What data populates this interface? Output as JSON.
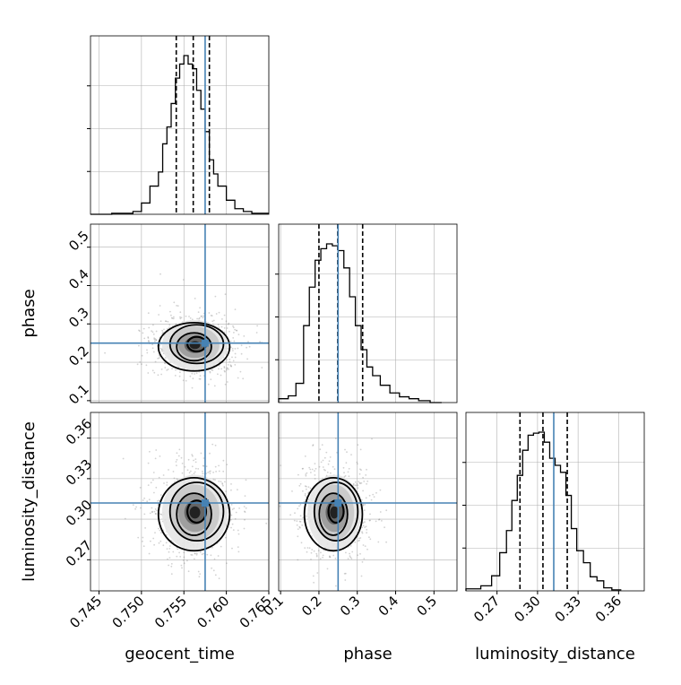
{
  "chart_data": {
    "type": "corner",
    "parameters": [
      "geocent_time",
      "phase",
      "luminosity_distance"
    ],
    "injection": {
      "geocent_time": 0.7575,
      "phase": 0.25,
      "luminosity_distance": 0.312
    },
    "quantiles": {
      "geocent_time": [
        0.7541,
        0.7561,
        0.758
      ],
      "phase": [
        0.2,
        0.249,
        0.314
      ],
      "luminosity_distance": [
        0.287,
        0.304,
        0.322
      ]
    },
    "ranges": {
      "geocent_time": [
        0.744,
        0.765
      ],
      "phase": [
        0.095,
        0.56
      ],
      "luminosity_distance": [
        0.247,
        0.379
      ]
    },
    "ticks": {
      "geocent_time": [
        "0.745",
        "0.750",
        "0.755",
        "0.760",
        "0.765"
      ],
      "phase": [
        "0.1",
        "0.2",
        "0.3",
        "0.4",
        "0.5"
      ],
      "luminosity_distance": [
        "0.27",
        "0.30",
        "0.33",
        "0.36"
      ]
    },
    "grid": true,
    "histograms": {
      "geocent_time": {
        "bins": [
          0.744,
          0.7465,
          0.749,
          0.75,
          0.751,
          0.752,
          0.7525,
          0.753,
          0.7535,
          0.754,
          0.7545,
          0.755,
          0.7555,
          0.756,
          0.7565,
          0.757,
          0.7575,
          0.758,
          0.7585,
          0.759,
          0.76,
          0.761,
          0.762,
          0.763,
          0.765
        ],
        "counts": [
          0,
          1,
          3,
          12,
          30,
          45,
          75,
          93,
          118,
          145,
          160,
          169,
          160,
          155,
          132,
          112,
          88,
          58,
          43,
          30,
          15,
          6,
          3,
          1
        ]
      },
      "phase": {
        "bins": [
          0.095,
          0.12,
          0.14,
          0.16,
          0.175,
          0.19,
          0.205,
          0.22,
          0.235,
          0.25,
          0.265,
          0.28,
          0.295,
          0.31,
          0.325,
          0.34,
          0.36,
          0.385,
          0.41,
          0.435,
          0.46,
          0.49,
          0.52
        ],
        "counts": [
          4,
          7,
          20,
          80,
          120,
          148,
          160,
          165,
          163,
          158,
          140,
          110,
          80,
          55,
          37,
          28,
          18,
          10,
          6,
          4,
          2,
          0
        ]
      },
      "luminosity_distance": {
        "bins": [
          0.247,
          0.258,
          0.266,
          0.272,
          0.277,
          0.281,
          0.285,
          0.289,
          0.293,
          0.297,
          0.301,
          0.305,
          0.309,
          0.313,
          0.317,
          0.321,
          0.325,
          0.329,
          0.334,
          0.339,
          0.344,
          0.349,
          0.355,
          0.362
        ],
        "counts": [
          2,
          5,
          15,
          38,
          60,
          90,
          115,
          140,
          155,
          157,
          158,
          148,
          132,
          125,
          118,
          95,
          62,
          40,
          28,
          14,
          10,
          3,
          1
        ]
      }
    },
    "joint_peaks": [
      {
        "x": "geocent_time",
        "y": "phase",
        "mean": [
          0.7563,
          0.245
        ],
        "sigma": [
          0.0025,
          0.042
        ]
      },
      {
        "x": "geocent_time",
        "y": "luminosity_distance",
        "mean": [
          0.7563,
          0.305
        ],
        "sigma": [
          0.0025,
          0.018
        ]
      },
      {
        "x": "phase",
        "y": "luminosity_distance",
        "mean": [
          0.24,
          0.305
        ],
        "sigma": [
          0.045,
          0.018
        ]
      }
    ],
    "colors": {
      "injection": "#4682b4",
      "hist": "#000000",
      "grid": "#b0b0b0",
      "scatter": "#7f7f7f"
    }
  }
}
